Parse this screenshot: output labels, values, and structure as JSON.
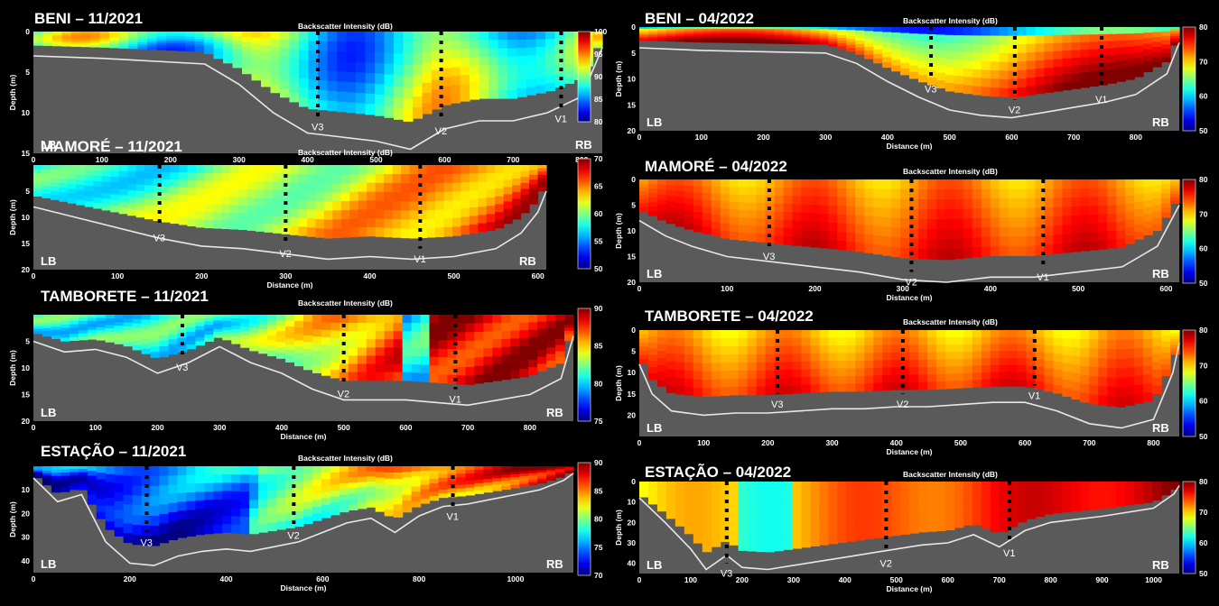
{
  "chart_data": [
    {
      "type": "heatmap",
      "title": "BENI – 11/2021",
      "subtitle": "Backscatter Intensity (dB)",
      "xlabel": "Distance (m)",
      "ylabel": "Depth (m)",
      "xlim": [
        0,
        830
      ],
      "ylim": [
        15,
        0
      ],
      "xticks": [
        0,
        100,
        200,
        300,
        400,
        500,
        600,
        700,
        800
      ],
      "yticks": [
        0,
        5,
        10,
        15
      ],
      "colorbar": {
        "min": 80,
        "max": 100,
        "ticks": [
          80,
          85,
          90,
          95,
          100
        ]
      },
      "bank_labels": {
        "left": "LB",
        "right": "RB"
      },
      "verticals": [
        {
          "label": "V3",
          "x": 415,
          "depth": 10.5
        },
        {
          "label": "V2",
          "x": 595,
          "depth": 11
        },
        {
          "label": "V1",
          "x": 770,
          "depth": 9.5
        }
      ],
      "bed_profile": {
        "x": [
          0,
          100,
          250,
          300,
          350,
          400,
          450,
          500,
          550,
          600,
          650,
          700,
          750,
          800,
          830
        ],
        "depth": [
          3,
          3.3,
          4,
          6.5,
          10,
          12.5,
          13,
          13.5,
          14.5,
          12,
          11,
          11,
          10,
          8,
          2
        ]
      }
    },
    {
      "type": "heatmap",
      "title": "BENI – 04/2022",
      "subtitle": "Backscatter Intensity (dB)",
      "xlabel": "Distance (m)",
      "ylabel": "Depth (m)",
      "xlim": [
        0,
        870
      ],
      "ylim": [
        20,
        0
      ],
      "xticks": [
        0,
        100,
        200,
        300,
        400,
        500,
        600,
        700,
        800
      ],
      "yticks": [
        0,
        5,
        10,
        15,
        20
      ],
      "colorbar": {
        "min": 50,
        "max": 80,
        "ticks": [
          50,
          60,
          70,
          80
        ]
      },
      "bank_labels": {
        "left": "LB",
        "right": "RB"
      },
      "verticals": [
        {
          "label": "V3",
          "x": 470,
          "depth": 10
        },
        {
          "label": "V2",
          "x": 605,
          "depth": 14
        },
        {
          "label": "V1",
          "x": 745,
          "depth": 12
        }
      ],
      "bed_profile": {
        "x": [
          0,
          100,
          300,
          350,
          400,
          450,
          500,
          550,
          600,
          650,
          700,
          750,
          800,
          850,
          870
        ],
        "depth": [
          4,
          4.5,
          5,
          7,
          10.5,
          13.5,
          16,
          17,
          17.5,
          16.5,
          15.5,
          14.5,
          13,
          9,
          3
        ]
      }
    },
    {
      "type": "heatmap",
      "title": "MAMORÉ – 11/2021",
      "subtitle": "Backscatter Intensity (dB)",
      "xlabel": "Distance (m)",
      "ylabel": "Depth (m)",
      "xlim": [
        0,
        610
      ],
      "ylim": [
        20,
        0
      ],
      "xticks": [
        0,
        100,
        200,
        300,
        400,
        500,
        600
      ],
      "yticks": [
        5,
        10,
        15,
        20
      ],
      "colorbar": {
        "min": 50,
        "max": 70,
        "ticks": [
          50,
          55,
          60,
          65,
          70
        ]
      },
      "bank_labels": {
        "left": "LB",
        "right": "RB"
      },
      "verticals": [
        {
          "label": "V3",
          "x": 150,
          "depth": 12
        },
        {
          "label": "V2",
          "x": 300,
          "depth": 15
        },
        {
          "label": "V1",
          "x": 460,
          "depth": 16
        }
      ],
      "bed_profile": {
        "x": [
          0,
          50,
          100,
          150,
          200,
          250,
          300,
          350,
          400,
          450,
          500,
          550,
          580,
          600,
          610
        ],
        "depth": [
          8,
          10,
          12,
          14,
          15.5,
          16,
          17,
          18,
          17.5,
          18,
          17.5,
          16,
          13,
          9,
          5
        ]
      }
    },
    {
      "type": "heatmap",
      "title": "MAMORÉ – 04/2022",
      "subtitle": "Backscatter Intensity (dB)",
      "xlabel": "Distance (m)",
      "ylabel": "Depth (m)",
      "xlim": [
        0,
        615
      ],
      "ylim": [
        20,
        0
      ],
      "xticks": [
        0,
        100,
        200,
        300,
        400,
        500,
        600
      ],
      "yticks": [
        0,
        5,
        10,
        15,
        20
      ],
      "colorbar": {
        "min": 50,
        "max": 80,
        "ticks": [
          50,
          60,
          70,
          80
        ]
      },
      "bank_labels": {
        "left": "LB",
        "right": "RB"
      },
      "verticals": [
        {
          "label": "V3",
          "x": 148,
          "depth": 13
        },
        {
          "label": "V2",
          "x": 310,
          "depth": 18
        },
        {
          "label": "V1",
          "x": 460,
          "depth": 17
        }
      ],
      "bed_profile": {
        "x": [
          0,
          30,
          60,
          100,
          150,
          200,
          250,
          300,
          350,
          400,
          450,
          500,
          550,
          590,
          615
        ],
        "depth": [
          8,
          11,
          13,
          15,
          16,
          17,
          18,
          19.5,
          20,
          19,
          19,
          18,
          17,
          13,
          5
        ]
      }
    },
    {
      "type": "heatmap",
      "title": "TAMBORETE – 11/2021",
      "subtitle": "Backscatter Intensity (dB)",
      "xlabel": "Distance (m)",
      "ylabel": "Depth (m)",
      "xlim": [
        0,
        870
      ],
      "ylim": [
        20,
        0
      ],
      "xticks": [
        0,
        100,
        200,
        300,
        400,
        500,
        600,
        700,
        800
      ],
      "yticks": [
        5,
        10,
        15,
        20
      ],
      "colorbar": {
        "min": 75,
        "max": 90,
        "ticks": [
          75,
          80,
          85,
          90
        ]
      },
      "bank_labels": {
        "left": "LB",
        "right": "RB"
      },
      "verticals": [
        {
          "label": "V3",
          "x": 240,
          "depth": 8
        },
        {
          "label": "V2",
          "x": 500,
          "depth": 13
        },
        {
          "label": "V1",
          "x": 680,
          "depth": 14
        }
      ],
      "bed_profile": {
        "x": [
          0,
          50,
          100,
          150,
          200,
          250,
          300,
          350,
          400,
          450,
          500,
          550,
          600,
          650,
          700,
          750,
          800,
          850,
          870
        ],
        "depth": [
          5,
          7,
          6.5,
          8,
          11,
          9,
          6,
          9,
          11,
          14,
          16,
          16,
          16,
          16.5,
          17,
          16,
          15,
          12,
          4
        ]
      }
    },
    {
      "type": "heatmap",
      "title": "TAMBORETE – 04/2022",
      "subtitle": "Backscatter Intensity (dB)",
      "xlabel": "Distance (m)",
      "ylabel": "Depth (m)",
      "xlim": [
        0,
        840
      ],
      "ylim": [
        25,
        0
      ],
      "xticks": [
        0,
        100,
        200,
        300,
        400,
        500,
        600,
        700,
        800
      ],
      "yticks": [
        0,
        5,
        10,
        15,
        20
      ],
      "colorbar": {
        "min": 50,
        "max": 80,
        "ticks": [
          50,
          60,
          70,
          80
        ]
      },
      "bank_labels": {
        "left": "LB",
        "right": "RB"
      },
      "verticals": [
        {
          "label": "V3",
          "x": 215,
          "depth": 15
        },
        {
          "label": "V2",
          "x": 410,
          "depth": 15
        },
        {
          "label": "V1",
          "x": 615,
          "depth": 13
        }
      ],
      "bed_profile": {
        "x": [
          0,
          20,
          50,
          100,
          150,
          200,
          250,
          300,
          350,
          400,
          450,
          500,
          550,
          600,
          650,
          700,
          750,
          800,
          830,
          840
        ],
        "depth": [
          8,
          15,
          19,
          20,
          19.5,
          19.5,
          19,
          18.5,
          18.5,
          18,
          18,
          17.5,
          17,
          17,
          19,
          22,
          23,
          21,
          10,
          3
        ]
      }
    },
    {
      "type": "heatmap",
      "title": "ESTAÇÃO – 11/2021",
      "subtitle": "Backscatter Intensity (dB)",
      "xlabel": "Distance (m)",
      "ylabel": "Depth (m)",
      "xlim": [
        0,
        1120
      ],
      "ylim": [
        45,
        0
      ],
      "xticks": [
        0,
        200,
        400,
        600,
        800,
        1000
      ],
      "yticks": [
        10,
        20,
        30,
        40
      ],
      "colorbar": {
        "min": 70,
        "max": 90,
        "ticks": [
          70,
          75,
          80,
          85,
          90
        ]
      },
      "bank_labels": {
        "left": "LB",
        "right": "RB"
      },
      "verticals": [
        {
          "label": "V3",
          "x": 235,
          "depth": 28
        },
        {
          "label": "V2",
          "x": 540,
          "depth": 25
        },
        {
          "label": "V1",
          "x": 870,
          "depth": 17
        }
      ],
      "bed_profile": {
        "x": [
          0,
          50,
          100,
          150,
          200,
          250,
          300,
          350,
          400,
          450,
          500,
          550,
          600,
          650,
          700,
          750,
          800,
          850,
          900,
          950,
          1000,
          1050,
          1100,
          1120
        ],
        "depth": [
          5,
          15,
          12,
          32,
          41,
          42,
          38,
          36,
          35,
          36,
          34,
          32,
          28,
          24,
          22,
          28,
          21,
          17,
          16,
          14,
          12,
          10,
          6,
          3
        ]
      }
    },
    {
      "type": "heatmap",
      "title": "ESTAÇÃO – 04/2022",
      "subtitle": "Backscatter Intensity (dB)",
      "xlabel": "Distance (m)",
      "ylabel": "Depth (m)",
      "xlim": [
        0,
        1050
      ],
      "ylim": [
        45,
        0
      ],
      "xticks": [
        0,
        100,
        200,
        300,
        400,
        500,
        600,
        700,
        800,
        900,
        1000
      ],
      "yticks": [
        0,
        10,
        20,
        30,
        40
      ],
      "colorbar": {
        "min": 50,
        "max": 80,
        "ticks": [
          50,
          60,
          70,
          80
        ]
      },
      "bank_labels": {
        "left": "LB",
        "right": "RB"
      },
      "verticals": [
        {
          "label": "V3",
          "x": 170,
          "depth": 40
        },
        {
          "label": "V2",
          "x": 480,
          "depth": 35
        },
        {
          "label": "V1",
          "x": 720,
          "depth": 30
        }
      ],
      "bed_profile": {
        "x": [
          0,
          50,
          100,
          130,
          170,
          200,
          250,
          300,
          350,
          400,
          450,
          500,
          550,
          600,
          650,
          700,
          750,
          800,
          900,
          1000,
          1040,
          1050
        ],
        "depth": [
          8,
          20,
          33,
          43,
          36,
          42,
          43,
          41,
          39,
          37,
          35,
          33,
          31,
          30,
          26,
          32,
          24,
          20,
          17,
          13,
          6,
          2
        ]
      }
    }
  ]
}
